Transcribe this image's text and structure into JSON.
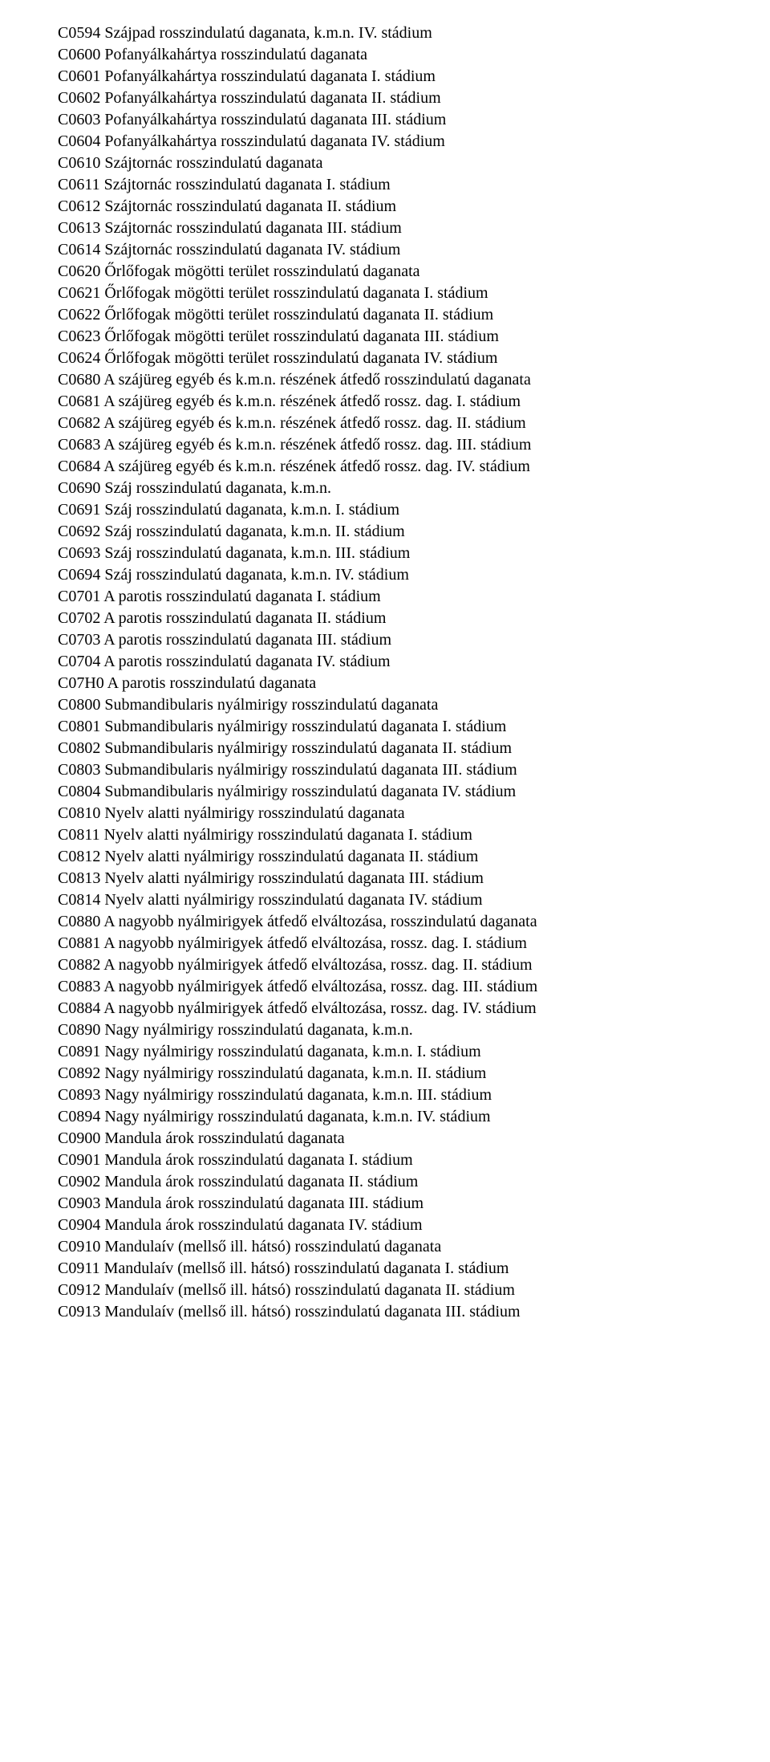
{
  "lines": [
    "C0594 Szájpad rosszindulatú daganata, k.m.n. IV. stádium",
    "C0600 Pofanyálkahártya rosszindulatú daganata",
    "C0601 Pofanyálkahártya rosszindulatú daganata I. stádium",
    "C0602 Pofanyálkahártya rosszindulatú daganata II. stádium",
    "C0603 Pofanyálkahártya rosszindulatú daganata III. stádium",
    "C0604 Pofanyálkahártya rosszindulatú daganata IV. stádium",
    "C0610 Szájtornác rosszindulatú daganata",
    "C0611 Szájtornác rosszindulatú daganata I. stádium",
    "C0612 Szájtornác rosszindulatú daganata II. stádium",
    "C0613 Szájtornác rosszindulatú daganata III. stádium",
    "C0614 Szájtornác rosszindulatú daganata IV. stádium",
    "C0620 Őrlőfogak mögötti terület rosszindulatú daganata",
    "C0621 Őrlőfogak mögötti terület rosszindulatú daganata I. stádium",
    "C0622 Őrlőfogak mögötti terület rosszindulatú daganata II. stádium",
    "C0623 Őrlőfogak mögötti terület rosszindulatú daganata III. stádium",
    "C0624 Őrlőfogak mögötti terület rosszindulatú daganata IV. stádium",
    "C0680 A szájüreg egyéb és k.m.n. részének átfedő rosszindulatú daganata",
    "C0681 A szájüreg egyéb és k.m.n. részének átfedő rossz. dag. I. stádium",
    "C0682 A szájüreg egyéb és k.m.n. részének átfedő rossz. dag. II. stádium",
    "C0683 A szájüreg egyéb és k.m.n. részének átfedő rossz. dag. III. stádium",
    "C0684 A szájüreg egyéb és k.m.n. részének átfedő rossz. dag. IV. stádium",
    "C0690 Száj rosszindulatú daganata, k.m.n.",
    "C0691 Száj rosszindulatú daganata, k.m.n. I. stádium",
    "C0692 Száj rosszindulatú daganata, k.m.n. II. stádium",
    "C0693 Száj rosszindulatú daganata, k.m.n. III. stádium",
    "C0694 Száj rosszindulatú daganata, k.m.n. IV. stádium",
    "C0701 A parotis rosszindulatú daganata I. stádium",
    "C0702 A parotis rosszindulatú daganata II. stádium",
    "C0703 A parotis rosszindulatú daganata III. stádium",
    "C0704 A parotis rosszindulatú daganata IV. stádium",
    "C07H0 A parotis rosszindulatú daganata",
    "C0800 Submandibularis nyálmirigy rosszindulatú daganata",
    "C0801 Submandibularis nyálmirigy rosszindulatú daganata I. stádium",
    "C0802 Submandibularis nyálmirigy rosszindulatú daganata II. stádium",
    "C0803 Submandibularis nyálmirigy rosszindulatú daganata III. stádium",
    "C0804 Submandibularis nyálmirigy rosszindulatú daganata IV. stádium",
    "C0810 Nyelv alatti nyálmirigy rosszindulatú daganata",
    "C0811 Nyelv alatti nyálmirigy rosszindulatú daganata I. stádium",
    "C0812 Nyelv alatti nyálmirigy rosszindulatú daganata II. stádium",
    "C0813 Nyelv alatti nyálmirigy rosszindulatú daganata III. stádium",
    "C0814 Nyelv alatti nyálmirigy rosszindulatú daganata IV. stádium",
    "C0880 A nagyobb nyálmirigyek átfedő elváltozása, rosszindulatú daganata",
    "C0881 A nagyobb nyálmirigyek átfedő elváltozása, rossz. dag. I. stádium",
    "C0882 A nagyobb nyálmirigyek átfedő elváltozása, rossz. dag. II. stádium",
    "C0883 A nagyobb nyálmirigyek átfedő elváltozása, rossz. dag. III. stádium",
    "C0884 A nagyobb nyálmirigyek átfedő elváltozása, rossz. dag. IV. stádium",
    "C0890 Nagy nyálmirigy rosszindulatú daganata, k.m.n.",
    "C0891 Nagy nyálmirigy rosszindulatú daganata, k.m.n. I. stádium",
    "C0892 Nagy nyálmirigy rosszindulatú daganata, k.m.n. II. stádium",
    "C0893 Nagy nyálmirigy rosszindulatú daganata, k.m.n. III. stádium",
    "C0894 Nagy nyálmirigy rosszindulatú daganata, k.m.n. IV. stádium",
    "C0900 Mandula árok rosszindulatú daganata",
    "C0901 Mandula árok rosszindulatú daganata I. stádium",
    "C0902 Mandula árok rosszindulatú daganata II. stádium",
    "C0903 Mandula árok rosszindulatú daganata III. stádium",
    "C0904 Mandula árok rosszindulatú daganata IV. stádium",
    "C0910 Mandulaív (mellső ill. hátsó) rosszindulatú daganata",
    "C0911 Mandulaív (mellső ill. hátsó) rosszindulatú daganata I. stádium",
    "C0912 Mandulaív (mellső ill. hátsó) rosszindulatú daganata II. stádium",
    "C0913 Mandulaív (mellső ill. hátsó) rosszindulatú daganata III. stádium"
  ]
}
